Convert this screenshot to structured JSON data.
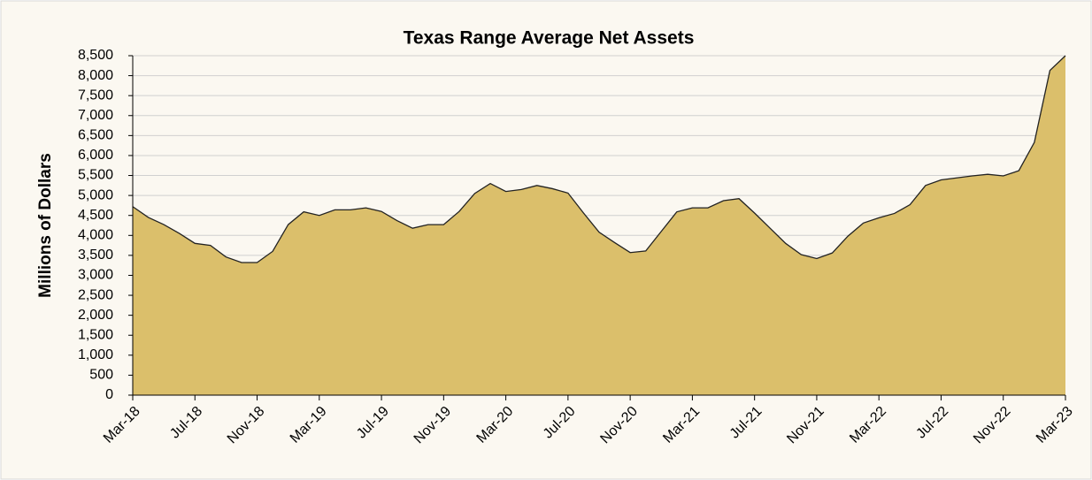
{
  "chart_data": {
    "type": "area",
    "title": "Texas Range Average Net Assets",
    "ylabel": "Millions of Dollars",
    "categories": [
      "Mar-18",
      null,
      null,
      null,
      "Jul-18",
      null,
      null,
      null,
      "Nov-18",
      null,
      null,
      null,
      "Mar-19",
      null,
      null,
      null,
      "Jul-19",
      null,
      null,
      null,
      "Nov-19",
      null,
      null,
      null,
      "Mar-20",
      null,
      null,
      null,
      "Jul-20",
      null,
      null,
      null,
      "Nov-20",
      null,
      null,
      null,
      "Mar-21",
      null,
      null,
      null,
      "Jul-21",
      null,
      null,
      null,
      "Nov-21",
      null,
      null,
      null,
      "Mar-22",
      null,
      null,
      null,
      "Jul-22",
      null,
      null,
      null,
      "Nov-22",
      null,
      null,
      null,
      "Mar-23"
    ],
    "values": [
      4720,
      4450,
      4270,
      4050,
      3800,
      3750,
      3460,
      3320,
      3320,
      3600,
      4270,
      4590,
      4500,
      4640,
      4640,
      4690,
      4600,
      4370,
      4180,
      4270,
      4270,
      4600,
      5050,
      5300,
      5100,
      5150,
      5250,
      5170,
      5060,
      4560,
      4080,
      3820,
      3570,
      3610,
      4100,
      4590,
      4690,
      4690,
      4870,
      4920,
      4560,
      4180,
      3800,
      3520,
      3420,
      3560,
      3980,
      4310,
      4440,
      4550,
      4770,
      5250,
      5390,
      5440,
      5490,
      5530,
      5490,
      5620,
      6330,
      8130,
      8500
    ],
    "color": "#dbbf6b",
    "ylim": [
      0,
      8500
    ],
    "yticks": [
      0,
      500,
      {
        "value": 1000,
        "label": "1,000"
      },
      {
        "value": 1500,
        "label": "1,500"
      },
      {
        "value": 2000,
        "label": "2,000"
      },
      {
        "value": 2500,
        "label": "2,500"
      },
      {
        "value": 3000,
        "label": "3,000"
      },
      {
        "value": 3500,
        "label": "3,500"
      },
      {
        "value": 4000,
        "label": "4,000"
      },
      {
        "value": 4500,
        "label": "4,500"
      },
      {
        "value": 5000,
        "label": "5,000"
      },
      {
        "value": 5500,
        "label": "5,500"
      },
      {
        "value": 6000,
        "label": "6,000"
      },
      {
        "value": 6500,
        "label": "6,500"
      },
      {
        "value": 7000,
        "label": "7,000"
      },
      {
        "value": 7500,
        "label": "7,500"
      },
      {
        "value": 8000,
        "label": "8,000"
      },
      {
        "value": 8500,
        "label": "8,500"
      }
    ],
    "grid": true
  }
}
